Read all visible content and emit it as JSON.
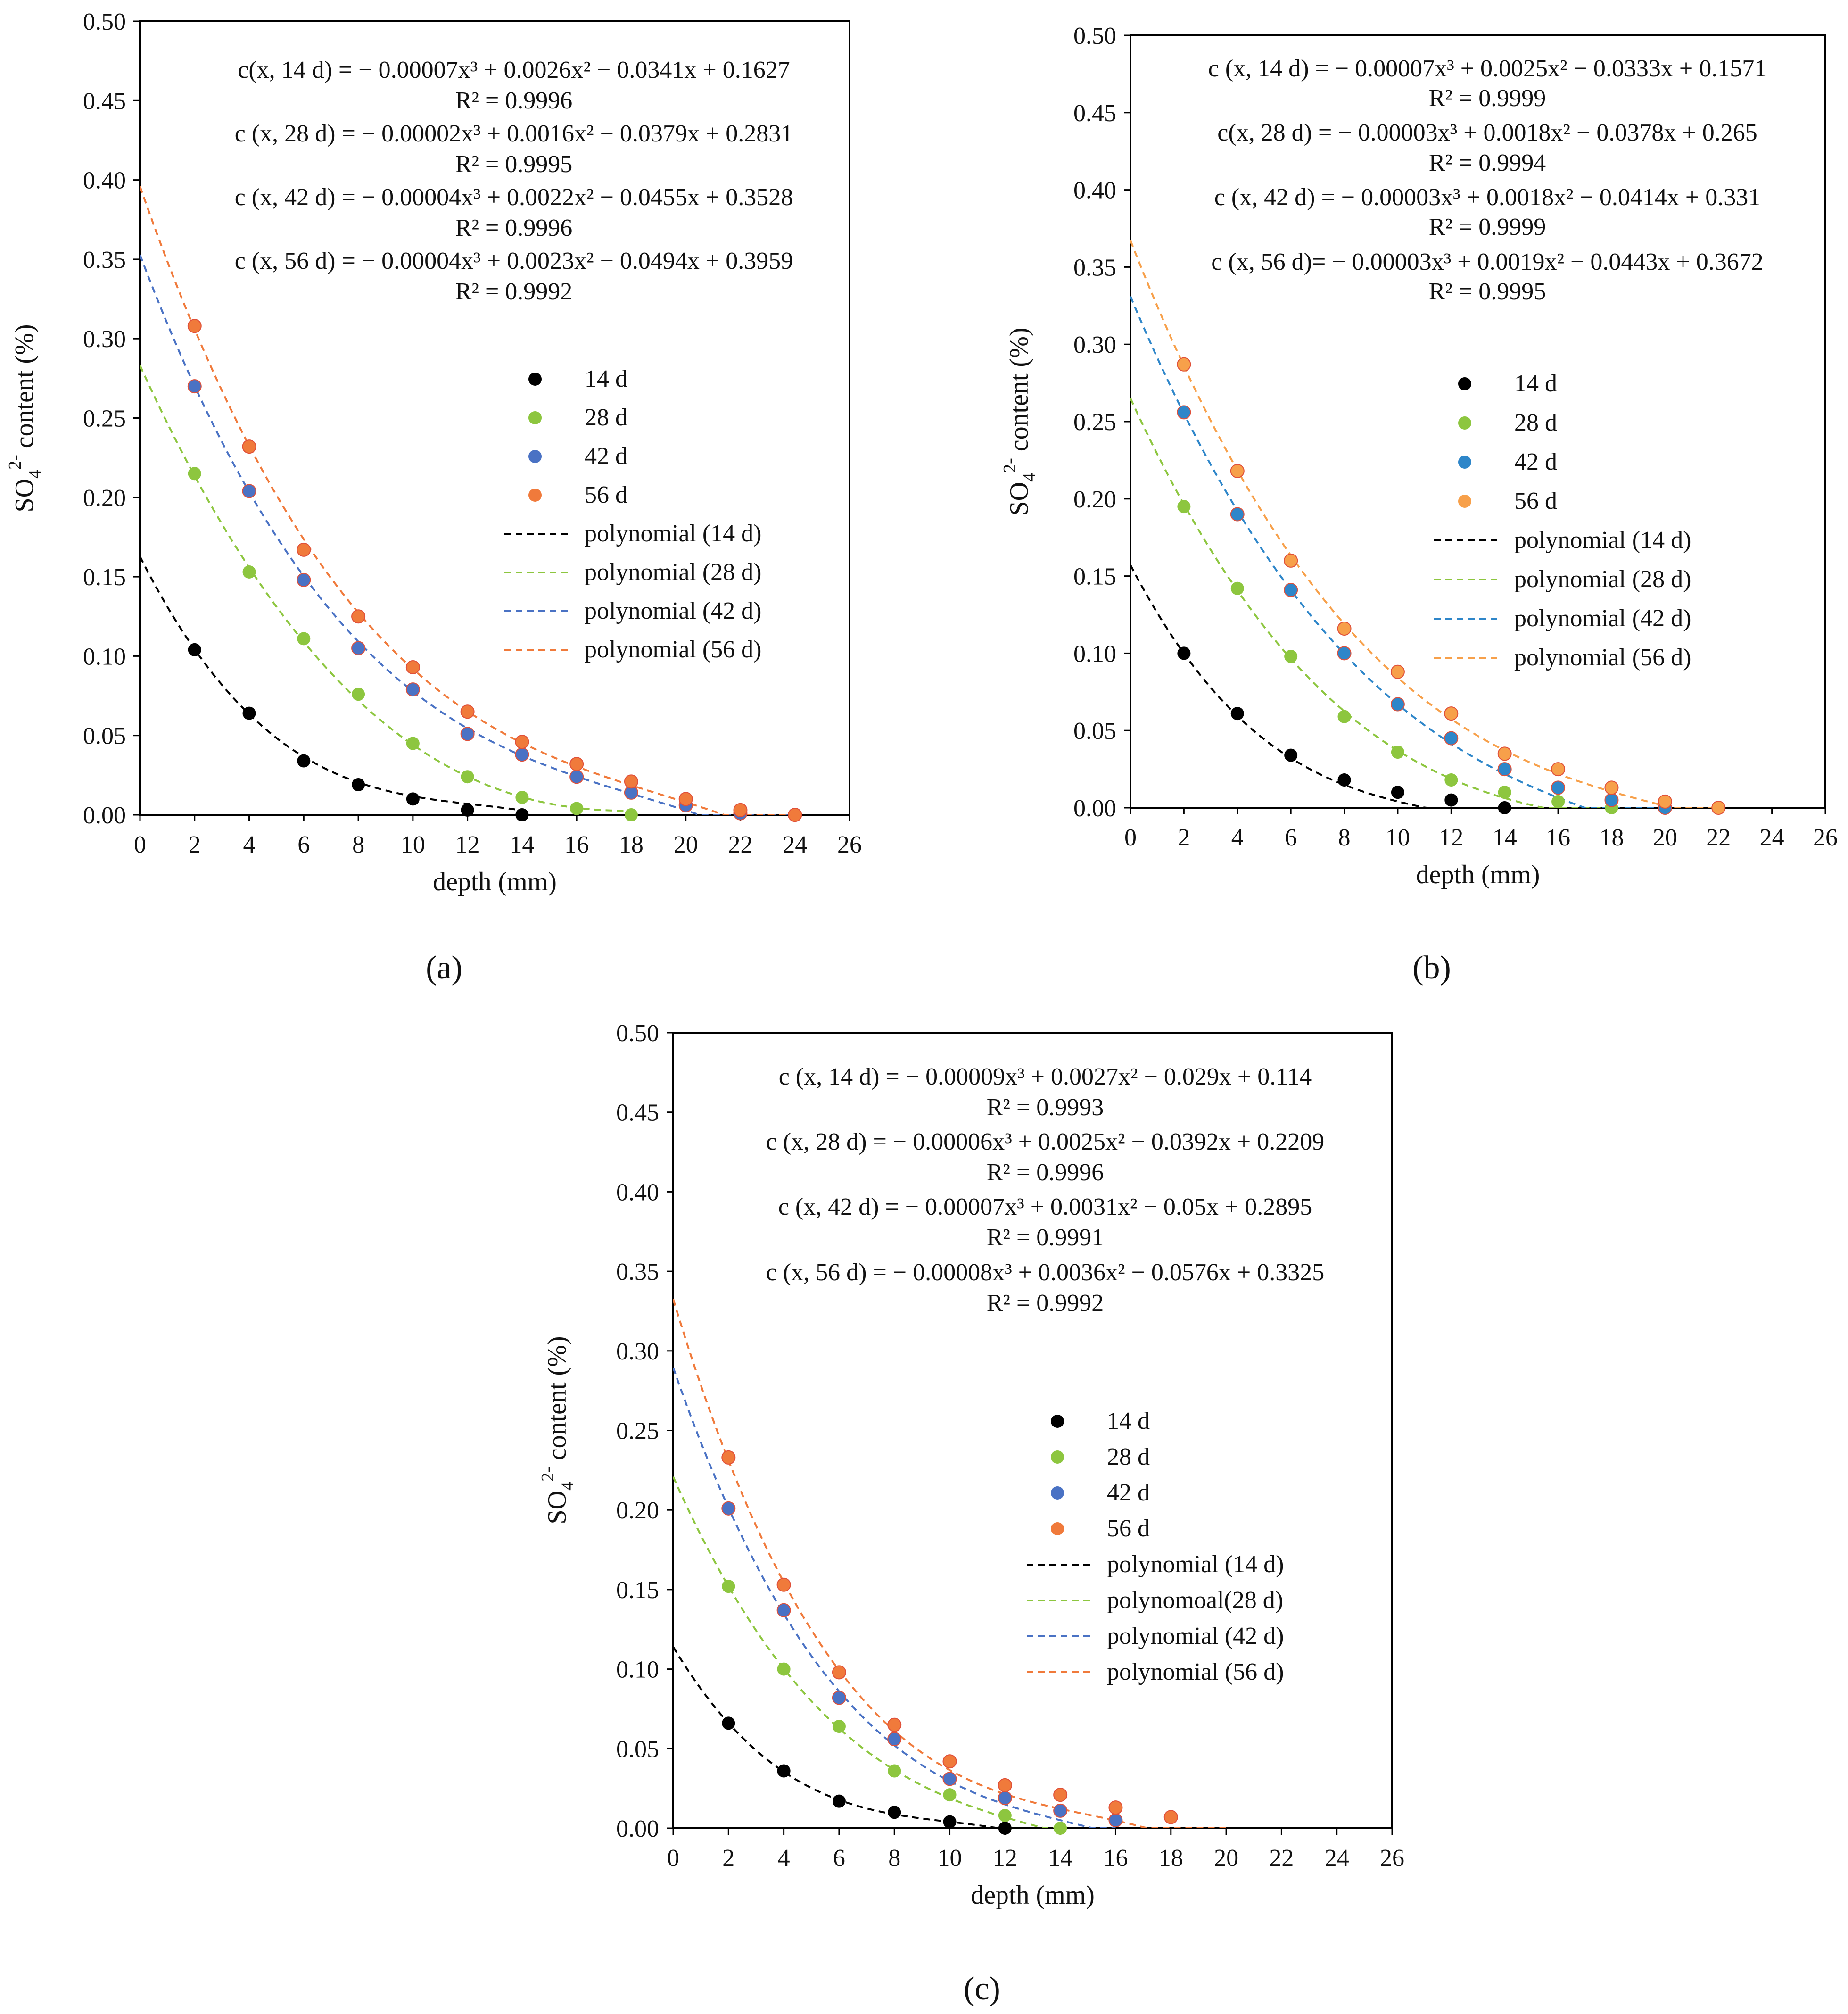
{
  "figure": {
    "x_label": "depth (mm)",
    "y_label_prefix": "SO",
    "y_label_sub": "4",
    "y_label_sup": "2-",
    "y_label_suffix": " content (%)"
  },
  "colors": {
    "14d": "#000000",
    "28d": "#8DC63F",
    "42d": "#4A72C4",
    "42d_b": "#2E86C9",
    "56d": "#F07A3B",
    "56d_b": "#F7A04A"
  },
  "chart_data": [
    {
      "panel": "(a)",
      "type": "scatter",
      "xlabel": "depth (mm)",
      "ylabel": "SO4 2- content (%)",
      "xlim": [
        0,
        26
      ],
      "ylim": [
        0,
        0.5
      ],
      "x_ticks": [
        "0",
        "2",
        "4",
        "6",
        "8",
        "10",
        "12",
        "14",
        "16",
        "18",
        "20",
        "22",
        "24",
        "26"
      ],
      "y_ticks": [
        "0.00",
        "0.05",
        "0.10",
        "0.15",
        "0.20",
        "0.25",
        "0.30",
        "0.35",
        "0.40",
        "0.45",
        "0.50"
      ],
      "equations": [
        {
          "text": "c(x, 14 d) = − 0.00007x³ + 0.0026x² − 0.0341x + 0.1627",
          "r2": "R² = 0.9996"
        },
        {
          "text": "c (x, 28 d) = − 0.00002x³ + 0.0016x² − 0.0379x + 0.2831",
          "r2": "R² = 0.9995"
        },
        {
          "text": "c (x, 42 d) = − 0.00004x³ + 0.0022x² − 0.0455x + 0.3528",
          "r2": "R² = 0.9996"
        },
        {
          "text": "c (x, 56 d) = − 0.00004x³ + 0.0023x² − 0.0494x + 0.3959",
          "r2": "R² = 0.9992"
        }
      ],
      "legend": [
        "14 d",
        "28 d",
        "42 d",
        "56 d",
        "polynomial (14 d)",
        "polynomial (28 d)",
        "polynomial (42 d)",
        "polynomial (56 d)"
      ],
      "series": [
        {
          "name": "14 d",
          "color": "#000000",
          "fit": [
            -7e-05,
            0.0026,
            -0.0341,
            0.1627
          ],
          "fit_range": [
            0,
            14
          ],
          "x": [
            2,
            4,
            6,
            8,
            10,
            12,
            14
          ],
          "y": [
            0.104,
            0.064,
            0.034,
            0.019,
            0.01,
            0.003,
            0.0
          ]
        },
        {
          "name": "28 d",
          "color": "#8DC63F",
          "fit": [
            -2e-05,
            0.0016,
            -0.0379,
            0.2831
          ],
          "fit_range": [
            0,
            18
          ],
          "x": [
            2,
            4,
            6,
            8,
            10,
            12,
            14,
            16,
            18
          ],
          "y": [
            0.215,
            0.153,
            0.111,
            0.076,
            0.045,
            0.024,
            0.011,
            0.004,
            0.0
          ]
        },
        {
          "name": "42 d",
          "color": "#4A72C4",
          "fit": [
            -4e-05,
            0.0022,
            -0.0455,
            0.3528
          ],
          "fit_range": [
            0,
            24
          ],
          "x": [
            2,
            4,
            6,
            8,
            10,
            12,
            14,
            16,
            18,
            20,
            22,
            24
          ],
          "y": [
            0.27,
            0.204,
            0.148,
            0.105,
            0.079,
            0.051,
            0.038,
            0.024,
            0.014,
            0.006,
            0.001,
            0.0
          ]
        },
        {
          "name": "56 d",
          "color": "#F07A3B",
          "fit": [
            -4e-05,
            0.0023,
            -0.0494,
            0.3959
          ],
          "fit_range": [
            0,
            24
          ],
          "x": [
            2,
            4,
            6,
            8,
            10,
            12,
            14,
            16,
            18,
            20,
            22,
            24
          ],
          "y": [
            0.308,
            0.232,
            0.167,
            0.125,
            0.093,
            0.065,
            0.046,
            0.032,
            0.021,
            0.01,
            0.003,
            0.0
          ]
        }
      ]
    },
    {
      "panel": "(b)",
      "type": "scatter",
      "xlabel": "depth (mm)",
      "ylabel": "SO4 2- content (%)",
      "xlim": [
        0,
        26
      ],
      "ylim": [
        0,
        0.5
      ],
      "x_ticks": [
        "0",
        "2",
        "4",
        "6",
        "8",
        "10",
        "12",
        "14",
        "16",
        "18",
        "20",
        "22",
        "24",
        "26"
      ],
      "y_ticks": [
        "0.00",
        "0.05",
        "0.10",
        "0.15",
        "0.20",
        "0.25",
        "0.30",
        "0.35",
        "0.40",
        "0.45",
        "0.50"
      ],
      "equations": [
        {
          "text": "c (x, 14 d) = − 0.00007x³ + 0.0025x² − 0.0333x + 0.1571",
          "r2": "R² = 0.9999"
        },
        {
          "text": "c(x, 28 d) = − 0.00003x³ + 0.0018x² − 0.0378x + 0.265",
          "r2": "R² = 0.9994"
        },
        {
          "text": "c (x, 42 d) = − 0.00003x³ + 0.0018x² − 0.0414x + 0.331",
          "r2": "R² = 0.9999"
        },
        {
          "text": "c (x, 56 d)= − 0.00003x³ + 0.0019x² − 0.0443x + 0.3672",
          "r2": "R² = 0.9995"
        }
      ],
      "legend": [
        "14 d",
        "28 d",
        "42 d",
        "56 d",
        "polynomial (14 d)",
        "polynomial (28 d)",
        "polynomial (42 d)",
        "polynomial (56 d)"
      ],
      "series": [
        {
          "name": "14 d",
          "color": "#000000",
          "fit": [
            -7e-05,
            0.0025,
            -0.0333,
            0.1571
          ],
          "fit_range": [
            0,
            14
          ],
          "x": [
            2,
            4,
            6,
            8,
            10,
            12,
            14
          ],
          "y": [
            0.1,
            0.061,
            0.034,
            0.018,
            0.01,
            0.005,
            0.0
          ]
        },
        {
          "name": "28 d",
          "color": "#8DC63F",
          "fit": [
            -3e-05,
            0.0018,
            -0.0378,
            0.265
          ],
          "fit_range": [
            0,
            18
          ],
          "x": [
            2,
            4,
            6,
            8,
            10,
            12,
            14,
            16,
            18
          ],
          "y": [
            0.195,
            0.142,
            0.098,
            0.059,
            0.036,
            0.018,
            0.01,
            0.004,
            0.0
          ]
        },
        {
          "name": "42 d",
          "color": "#2E86C9",
          "fit": [
            -3e-05,
            0.0018,
            -0.0414,
            0.331
          ],
          "fit_range": [
            0,
            20
          ],
          "x": [
            2,
            4,
            6,
            8,
            10,
            12,
            14,
            16,
            18,
            20
          ],
          "y": [
            0.256,
            0.19,
            0.141,
            0.1,
            0.067,
            0.045,
            0.025,
            0.013,
            0.005,
            0.0
          ]
        },
        {
          "name": "56 d",
          "color": "#F7A04A",
          "fit": [
            -3e-05,
            0.0019,
            -0.0443,
            0.3672
          ],
          "fit_range": [
            0,
            22
          ],
          "x": [
            2,
            4,
            6,
            8,
            10,
            12,
            14,
            16,
            18,
            20,
            22
          ],
          "y": [
            0.287,
            0.218,
            0.16,
            0.116,
            0.088,
            0.061,
            0.035,
            0.025,
            0.013,
            0.004,
            0.0
          ]
        }
      ]
    },
    {
      "panel": "(c)",
      "type": "scatter",
      "xlabel": "depth (mm)",
      "ylabel": "SO4 2- content (%)",
      "xlim": [
        0,
        26
      ],
      "ylim": [
        0,
        0.5
      ],
      "x_ticks": [
        "0",
        "2",
        "4",
        "6",
        "8",
        "10",
        "12",
        "14",
        "16",
        "18",
        "20",
        "22",
        "24",
        "26"
      ],
      "y_ticks": [
        "0.00",
        "0.05",
        "0.10",
        "0.15",
        "0.20",
        "0.25",
        "0.30",
        "0.35",
        "0.40",
        "0.45",
        "0.50"
      ],
      "equations": [
        {
          "text": "c (x, 14 d) = − 0.00009x³ + 0.0027x² − 0.029x + 0.114",
          "r2": "R² = 0.9993"
        },
        {
          "text": "c (x, 28 d) = − 0.00006x³ + 0.0025x² − 0.0392x + 0.2209",
          "r2": "R² = 0.9996"
        },
        {
          "text": "c (x, 42 d) = − 0.00007x³ + 0.0031x² − 0.05x + 0.2895",
          "r2": "R² = 0.9991"
        },
        {
          "text": "c (x, 56 d) = − 0.00008x³ + 0.0036x² − 0.0576x + 0.3325",
          "r2": "R² = 0.9992"
        }
      ],
      "legend": [
        "14 d",
        "28 d",
        "42 d",
        "56 d",
        "polynomial (14 d)",
        "polynomoal(28 d)",
        "polynomial (42 d)",
        "polynomial (56 d)"
      ],
      "series": [
        {
          "name": "14 d",
          "color": "#000000",
          "fit": [
            -9e-05,
            0.0027,
            -0.029,
            0.114
          ],
          "fit_range": [
            0,
            12
          ],
          "x": [
            2,
            4,
            6,
            8,
            10,
            12
          ],
          "y": [
            0.066,
            0.036,
            0.017,
            0.01,
            0.004,
            0.0
          ]
        },
        {
          "name": "28 d",
          "color": "#8DC63F",
          "fit": [
            -6e-05,
            0.0025,
            -0.0392,
            0.2209
          ],
          "fit_range": [
            0,
            14
          ],
          "x": [
            2,
            4,
            6,
            8,
            10,
            12,
            14
          ],
          "y": [
            0.152,
            0.1,
            0.064,
            0.036,
            0.021,
            0.008,
            0.0
          ]
        },
        {
          "name": "42 d",
          "color": "#4A72C4",
          "fit": [
            -7e-05,
            0.0031,
            -0.05,
            0.2895
          ],
          "fit_range": [
            0,
            16
          ],
          "x": [
            2,
            4,
            6,
            8,
            10,
            12,
            14,
            16
          ],
          "y": [
            0.201,
            0.137,
            0.082,
            0.056,
            0.031,
            0.019,
            0.011,
            0.005
          ]
        },
        {
          "name": "56 d",
          "color": "#F07A3B",
          "fit": [
            -8e-05,
            0.0036,
            -0.0576,
            0.3325
          ],
          "fit_range": [
            0,
            20
          ],
          "x": [
            2,
            4,
            6,
            8,
            10,
            12,
            14,
            16,
            18
          ],
          "y": [
            0.233,
            0.153,
            0.098,
            0.065,
            0.042,
            0.027,
            0.021,
            0.013,
            0.007
          ]
        }
      ]
    }
  ]
}
